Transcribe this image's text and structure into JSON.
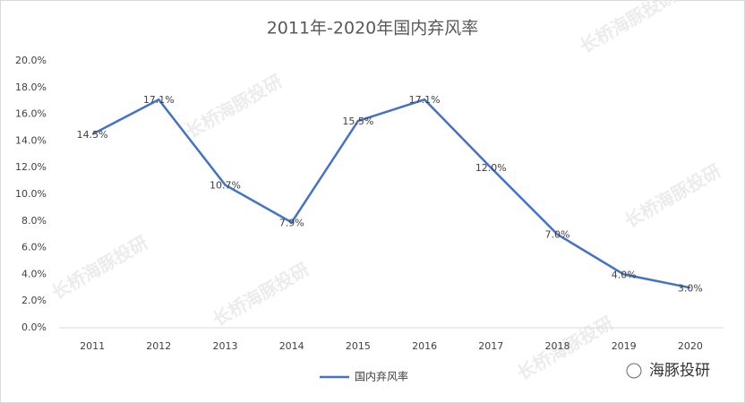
{
  "chart_data": {
    "type": "line",
    "title": "2011年-2020年国内弃风率",
    "categories": [
      "2011",
      "2012",
      "2013",
      "2014",
      "2015",
      "2016",
      "2017",
      "2018",
      "2019",
      "2020"
    ],
    "series": [
      {
        "name": "国内弃风率",
        "color": "#4472c4",
        "values": [
          14.5,
          17.1,
          10.7,
          7.9,
          15.5,
          17.1,
          12.0,
          7.0,
          4.0,
          3.0
        ],
        "value_labels": [
          "14.5%",
          "17.1%",
          "10.7%",
          "7.9%",
          "15.5%",
          "17.1%",
          "12.0%",
          "7.0%",
          "4.0%",
          "3.0%"
        ]
      }
    ],
    "ylim": [
      0,
      20
    ],
    "yticks": [
      {
        "value": 0,
        "label": "0.0%"
      },
      {
        "value": 2,
        "label": "2.0%"
      },
      {
        "value": 4,
        "label": "4.0%"
      },
      {
        "value": 6,
        "label": "6.0%"
      },
      {
        "value": 8,
        "label": "8.0%"
      },
      {
        "value": 10,
        "label": "10.0%"
      },
      {
        "value": 12,
        "label": "12.0%"
      },
      {
        "value": 14,
        "label": "14.0%"
      },
      {
        "value": 16,
        "label": "16.0%"
      },
      {
        "value": 18,
        "label": "18.0%"
      },
      {
        "value": 20,
        "label": "20.0%"
      }
    ],
    "grid": false,
    "legend": "bottom"
  },
  "watermark": "长桥海豚投研",
  "brand": "海豚投研"
}
